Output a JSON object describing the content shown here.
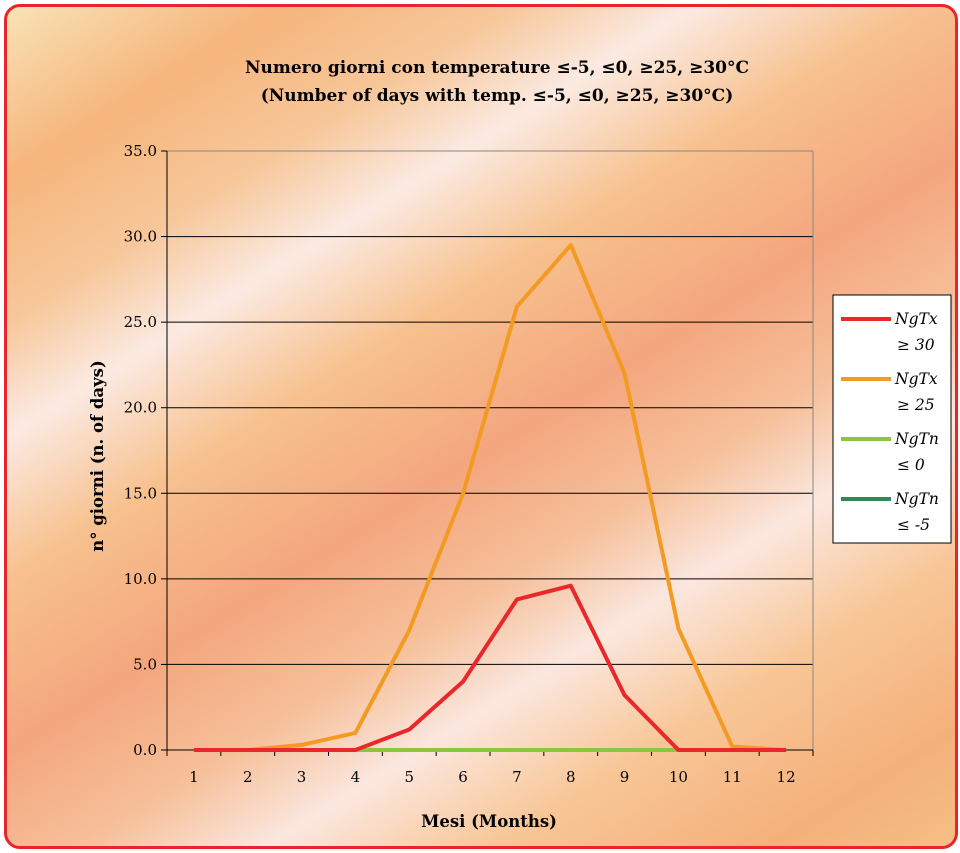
{
  "chart_data": {
    "type": "line",
    "title": "Numero giorni con temperature ≤-5, ≤0, ≥25, ≥30°C",
    "subtitle": "(Number of days with temp. ≤-5, ≤0, ≥25, ≥30°C)",
    "xlabel": "Mesi (Months)",
    "ylabel": "n° giorni (n. of days)",
    "categories": [
      "1",
      "2",
      "3",
      "4",
      "5",
      "6",
      "7",
      "8",
      "9",
      "10",
      "11",
      "12"
    ],
    "y_ticks": [
      "0.0",
      "5.0",
      "10.0",
      "15.0",
      "20.0",
      "25.0",
      "30.0",
      "35.0"
    ],
    "ylim": [
      0,
      35
    ],
    "grid": "horizontal",
    "legend_position": "right",
    "series": [
      {
        "name_line1": "NgTx",
        "name_line2": "≥ 30",
        "color": "#e8282a",
        "values": [
          0,
          0,
          0,
          0,
          1.2,
          4.0,
          8.8,
          9.6,
          3.2,
          0,
          0,
          0
        ]
      },
      {
        "name_line1": "NgTx",
        "name_line2": "≥ 25",
        "color": "#f39a22",
        "values": [
          0,
          0,
          0.3,
          1.0,
          7.0,
          15.0,
          25.9,
          29.5,
          22.0,
          7.1,
          0.2,
          0
        ]
      },
      {
        "name_line1": "NgTn",
        "name_line2": "≤ 0",
        "color": "#8cc63f",
        "values": [
          0,
          0,
          0,
          0,
          0,
          0,
          0,
          0,
          0,
          0,
          0,
          0
        ]
      },
      {
        "name_line1": "NgTn",
        "name_line2": "≤ -5",
        "color": "#2e8b57",
        "values": [
          0,
          0,
          0,
          0,
          0,
          0,
          0,
          0,
          0,
          0,
          0,
          0
        ]
      }
    ]
  }
}
